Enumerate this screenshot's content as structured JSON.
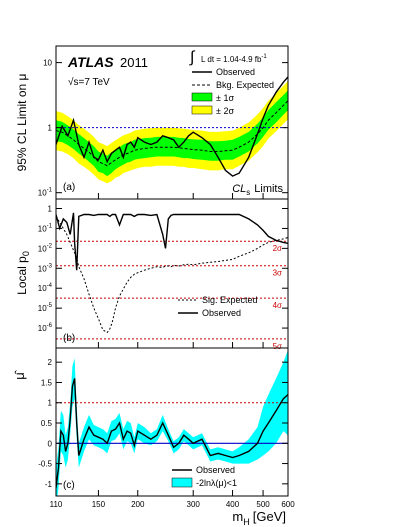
{
  "x_axis": {
    "label_main": "m",
    "label_sub": "H",
    "label_unit": "[GeV]",
    "ticks": [
      "110",
      "150",
      "200",
      "300",
      "400",
      "500",
      "600"
    ]
  },
  "chart_data": [
    {
      "panel": "a",
      "type": "line",
      "panel_label": "(a)",
      "corner_label_main": "CL",
      "corner_label_sub": "s",
      "corner_label_tail": "Limits",
      "ylabel": "95% CL Limit on μ",
      "y_scale": "log",
      "ylim": [
        0.08,
        18
      ],
      "yticks": [
        {
          "value": 0.1,
          "base": "10",
          "exp": "-1"
        },
        {
          "value": 1,
          "base": "1",
          "exp": ""
        },
        {
          "value": 10,
          "base": "10",
          "exp": ""
        }
      ],
      "experiment": "ATLAS",
      "year": "2011",
      "energy_prefix": "√s=7 TeV",
      "lumi_text": "L dt = 1.04-4.9 fb",
      "lumi_exp": "-1",
      "reference_lines": [
        {
          "y": 1,
          "color": "#0000cc",
          "style": "dotted"
        }
      ],
      "legend": {
        "placement": "top-right",
        "items": [
          "Observed",
          "Bkg. Expected",
          "± 1σ",
          "± 2σ"
        ]
      },
      "colors": {
        "band_1sigma": "#00ff00",
        "band_2sigma": "#ffff00",
        "observed": "#000000"
      },
      "x": [
        110,
        115,
        120,
        125,
        130,
        135,
        140,
        145,
        150,
        155,
        160,
        165,
        170,
        175,
        180,
        185,
        190,
        195,
        200,
        210,
        220,
        230,
        240,
        250,
        260,
        270,
        280,
        290,
        300,
        320,
        340,
        360,
        380,
        400,
        420,
        450,
        480,
        500,
        520,
        550,
        580,
        600
      ],
      "observed": [
        0.55,
        1.05,
        0.75,
        1.3,
        0.55,
        0.35,
        0.6,
        0.35,
        0.32,
        0.45,
        0.3,
        0.4,
        0.45,
        0.5,
        0.35,
        0.55,
        0.6,
        0.5,
        0.7,
        0.6,
        0.55,
        0.6,
        0.75,
        0.7,
        0.65,
        0.5,
        0.6,
        0.75,
        0.85,
        0.7,
        0.55,
        0.35,
        0.22,
        0.18,
        0.2,
        0.35,
        0.8,
        1.4,
        2.2,
        3.5,
        5.0,
        6.0
      ],
      "expected": [
        0.9,
        0.85,
        0.75,
        0.65,
        0.55,
        0.48,
        0.42,
        0.36,
        0.3,
        0.28,
        0.26,
        0.29,
        0.32,
        0.35,
        0.38,
        0.4,
        0.42,
        0.45,
        0.46,
        0.48,
        0.49,
        0.5,
        0.5,
        0.5,
        0.5,
        0.49,
        0.48,
        0.47,
        0.46,
        0.45,
        0.43,
        0.43,
        0.44,
        0.45,
        0.5,
        0.6,
        0.8,
        1.0,
        1.3,
        1.7,
        2.2,
        2.6
      ],
      "band_1sigma": {
        "low": [
          0.62,
          0.6,
          0.54,
          0.47,
          0.4,
          0.35,
          0.3,
          0.26,
          0.21,
          0.2,
          0.18,
          0.2,
          0.23,
          0.25,
          0.27,
          0.29,
          0.3,
          0.32,
          0.33,
          0.34,
          0.35,
          0.36,
          0.36,
          0.36,
          0.36,
          0.35,
          0.34,
          0.34,
          0.33,
          0.32,
          0.31,
          0.31,
          0.32,
          0.32,
          0.36,
          0.43,
          0.57,
          0.72,
          0.93,
          1.2,
          1.58,
          1.86
        ],
        "high": [
          1.3,
          1.23,
          1.08,
          0.94,
          0.8,
          0.69,
          0.6,
          0.52,
          0.43,
          0.4,
          0.37,
          0.42,
          0.46,
          0.5,
          0.55,
          0.58,
          0.6,
          0.65,
          0.66,
          0.69,
          0.7,
          0.72,
          0.72,
          0.72,
          0.72,
          0.7,
          0.69,
          0.67,
          0.66,
          0.65,
          0.62,
          0.62,
          0.63,
          0.65,
          0.72,
          0.86,
          1.15,
          1.44,
          1.87,
          2.45,
          3.17,
          3.74
        ]
      },
      "band_2sigma": {
        "low": [
          0.45,
          0.43,
          0.39,
          0.34,
          0.28,
          0.25,
          0.22,
          0.19,
          0.16,
          0.15,
          0.14,
          0.15,
          0.17,
          0.18,
          0.2,
          0.21,
          0.22,
          0.23,
          0.24,
          0.25,
          0.25,
          0.26,
          0.26,
          0.26,
          0.26,
          0.25,
          0.25,
          0.24,
          0.24,
          0.23,
          0.22,
          0.22,
          0.23,
          0.23,
          0.26,
          0.31,
          0.42,
          0.52,
          0.68,
          0.88,
          1.14,
          1.35
        ],
        "high": [
          1.8,
          1.7,
          1.5,
          1.3,
          1.1,
          0.96,
          0.84,
          0.72,
          0.6,
          0.56,
          0.52,
          0.58,
          0.64,
          0.7,
          0.76,
          0.8,
          0.84,
          0.9,
          0.92,
          0.96,
          0.98,
          1.0,
          1.0,
          1.0,
          1.0,
          0.98,
          0.96,
          0.94,
          0.92,
          0.9,
          0.86,
          0.86,
          0.88,
          0.9,
          1.0,
          1.2,
          1.6,
          2.0,
          2.6,
          3.4,
          4.4,
          5.2
        ]
      }
    },
    {
      "panel": "b",
      "type": "line",
      "panel_label": "(b)",
      "ylabel_main": "Local p",
      "ylabel_sub": "0",
      "y_scale": "log",
      "ylim": [
        1e-07,
        3
      ],
      "yticks": [
        {
          "value": 1,
          "base": "1",
          "exp": ""
        },
        {
          "value": 0.1,
          "base": "10",
          "exp": "-1"
        },
        {
          "value": 0.01,
          "base": "10",
          "exp": "-2"
        },
        {
          "value": 0.001,
          "base": "10",
          "exp": "-3"
        },
        {
          "value": 0.0001,
          "base": "10",
          "exp": "-4"
        },
        {
          "value": 1e-05,
          "base": "10",
          "exp": "-5"
        },
        {
          "value": 1e-06,
          "base": "10",
          "exp": "-6"
        }
      ],
      "sigma_lines": [
        {
          "label": "2σ",
          "p": 0.0228
        },
        {
          "label": "3σ",
          "p": 0.00135
        },
        {
          "label": "4σ",
          "p": 3.17e-05
        },
        {
          "label": "5σ",
          "p": 2.87e-07
        }
      ],
      "legend": {
        "placement": "bottom-right",
        "items": [
          "Sig. Expected",
          "Observed"
        ]
      },
      "colors": {
        "sigma_line": "#cc0000",
        "sigma_text": "#cc0000"
      },
      "x": [
        110,
        113,
        116,
        119,
        122,
        125,
        126,
        128,
        130,
        135,
        140,
        145,
        150,
        155,
        160,
        163,
        166,
        170,
        175,
        180,
        185,
        190,
        195,
        200,
        210,
        220,
        230,
        240,
        245,
        250,
        255,
        260,
        270,
        280,
        290,
        300,
        320,
        340,
        360,
        380,
        400,
        420,
        450,
        480,
        500,
        520,
        550,
        580,
        600
      ],
      "observed": [
        0.5,
        0.1,
        0.3,
        0.2,
        0.05,
        0.6,
        0.02,
        0.0008,
        0.4,
        0.5,
        0.5,
        0.45,
        0.5,
        0.5,
        0.5,
        0.4,
        0.5,
        0.5,
        0.15,
        0.5,
        0.5,
        0.5,
        0.4,
        0.5,
        0.5,
        0.45,
        0.5,
        0.05,
        0.01,
        0.3,
        0.45,
        0.5,
        0.5,
        0.5,
        0.5,
        0.5,
        0.5,
        0.5,
        0.5,
        0.5,
        0.5,
        0.5,
        0.3,
        0.15,
        0.08,
        0.04,
        0.025,
        0.02,
        0.018
      ],
      "sig_expected": [
        0.4,
        0.2,
        0.1,
        0.05,
        0.02,
        0.008,
        0.006,
        0.003,
        0.0012,
        0.0003,
        5e-05,
        1e-05,
        3e-06,
        8e-07,
        6e-07,
        9e-07,
        2e-06,
        1e-05,
        4e-05,
        9e-05,
        0.0002,
        0.00035,
        0.0005,
        0.0006,
        0.0008,
        0.001,
        0.0012,
        0.0011,
        0.0013,
        0.0013,
        0.0012,
        0.0014,
        0.0013,
        0.0015,
        0.0016,
        0.0015,
        0.0018,
        0.002,
        0.0022,
        0.0025,
        0.0028,
        0.004,
        0.006,
        0.01,
        0.015,
        0.02,
        0.025,
        0.03,
        0.035
      ]
    },
    {
      "panel": "c",
      "type": "line",
      "panel_label": "(c)",
      "ylabel": "μ̂",
      "y_scale": "linear",
      "ylim": [
        -1.3,
        2.35
      ],
      "yticks": [
        {
          "value": -1,
          "label": "-1"
        },
        {
          "value": -0.5,
          "label": "-0.5"
        },
        {
          "value": 0,
          "label": "0"
        },
        {
          "value": 0.5,
          "label": "0.5"
        },
        {
          "value": 1,
          "label": "1"
        },
        {
          "value": 1.5,
          "label": "1.5"
        },
        {
          "value": 2,
          "label": "2"
        }
      ],
      "reference_lines": [
        {
          "y": 1,
          "color": "#cc0000",
          "style": "dotted"
        },
        {
          "y": 0,
          "color": "#0000cc",
          "style": "solid"
        }
      ],
      "legend": {
        "placement": "bottom-right",
        "items": [
          "Observed",
          "-2lnλ(μ)<1"
        ]
      },
      "colors": {
        "band": "#00ffff",
        "observed": "#000000"
      },
      "x": [
        110,
        112,
        114,
        116,
        118,
        120,
        122,
        124,
        126,
        128,
        130,
        135,
        140,
        145,
        150,
        155,
        160,
        165,
        170,
        175,
        180,
        185,
        190,
        195,
        200,
        210,
        220,
        230,
        240,
        250,
        260,
        270,
        280,
        290,
        300,
        320,
        340,
        360,
        380,
        400,
        420,
        450,
        480,
        500,
        520,
        550,
        580,
        600
      ],
      "observed": [
        -1.1,
        -0.6,
        0.3,
        0.2,
        -0.2,
        0.0,
        0.6,
        1.4,
        1.6,
        0.5,
        -0.3,
        0.1,
        0.4,
        0.2,
        0.15,
        0.1,
        0.0,
        0.3,
        0.35,
        0.5,
        0.1,
        0.3,
        0.25,
        -0.05,
        0.3,
        0.2,
        0.1,
        0.2,
        0.5,
        0.2,
        -0.1,
        0.0,
        0.2,
        0.1,
        0.0,
        0.1,
        -0.3,
        -0.25,
        -0.3,
        -0.35,
        -0.3,
        -0.2,
        0.0,
        0.3,
        0.5,
        0.8,
        1.1,
        1.2
      ],
      "band_low": [
        -1.6,
        -1.1,
        -0.2,
        -0.3,
        -0.6,
        -0.4,
        0.2,
        0.9,
        1.1,
        0.1,
        -0.6,
        -0.2,
        0.1,
        -0.05,
        -0.1,
        -0.15,
        -0.25,
        0.05,
        0.1,
        0.25,
        -0.15,
        0.05,
        0.0,
        -0.25,
        0.1,
        0.0,
        -0.05,
        0.05,
        0.3,
        0.05,
        -0.25,
        -0.15,
        0.05,
        -0.05,
        -0.15,
        -0.05,
        -0.45,
        -0.4,
        -0.45,
        -0.5,
        -0.5,
        -0.5,
        -0.4,
        -0.3,
        -0.2,
        0.0,
        0.3,
        0.2
      ],
      "band_high": [
        -0.6,
        -0.1,
        0.8,
        0.7,
        0.2,
        0.4,
        1.0,
        1.9,
        2.1,
        0.9,
        0.0,
        0.4,
        0.7,
        0.45,
        0.4,
        0.35,
        0.25,
        0.55,
        0.6,
        0.75,
        0.35,
        0.55,
        0.5,
        0.15,
        0.5,
        0.4,
        0.25,
        0.35,
        0.7,
        0.35,
        0.05,
        0.15,
        0.35,
        0.25,
        0.15,
        0.25,
        -0.15,
        -0.1,
        -0.15,
        -0.2,
        -0.1,
        0.1,
        0.4,
        0.9,
        1.2,
        1.6,
        2.0,
        2.3
      ]
    }
  ]
}
